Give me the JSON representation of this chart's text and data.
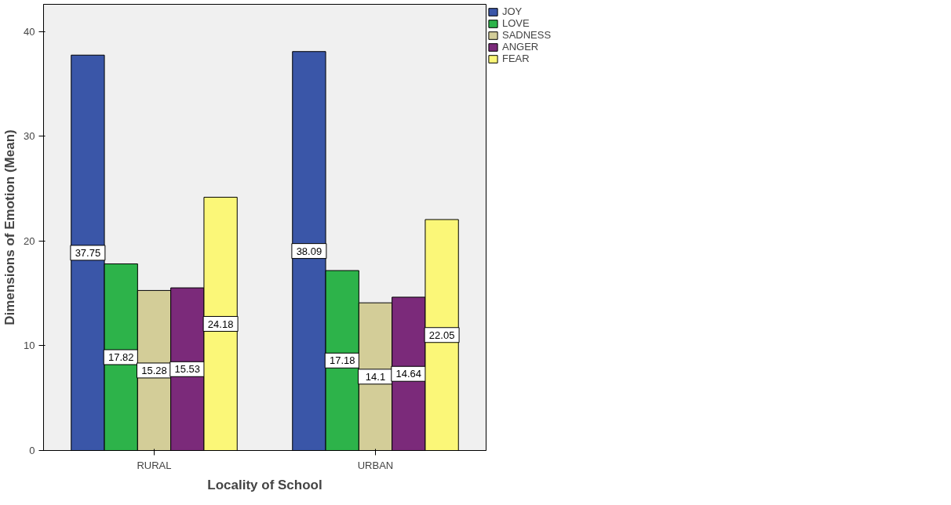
{
  "chart_data": {
    "type": "bar",
    "xlabel": "Locality of School",
    "ylabel": "Dimensions of Emotion (Mean)",
    "categories": [
      "RURAL",
      "URBAN"
    ],
    "series": [
      {
        "name": "JOY",
        "color": "#3a56a8",
        "values": [
          37.75,
          38.09
        ]
      },
      {
        "name": "LOVE",
        "color": "#2db34a",
        "values": [
          17.82,
          17.18
        ]
      },
      {
        "name": "SADNESS",
        "color": "#d3cd98",
        "values": [
          15.28,
          14.1
        ]
      },
      {
        "name": "ANGER",
        "color": "#7b2a7a",
        "values": [
          15.53,
          14.64
        ]
      },
      {
        "name": "FEAR",
        "color": "#fbf778",
        "values": [
          24.18,
          22.05
        ]
      }
    ],
    "ylim": [
      0,
      42.6
    ],
    "yticks": [
      0,
      10,
      20,
      30,
      40
    ],
    "data_labels": true,
    "legend": "top right",
    "grid": false
  }
}
